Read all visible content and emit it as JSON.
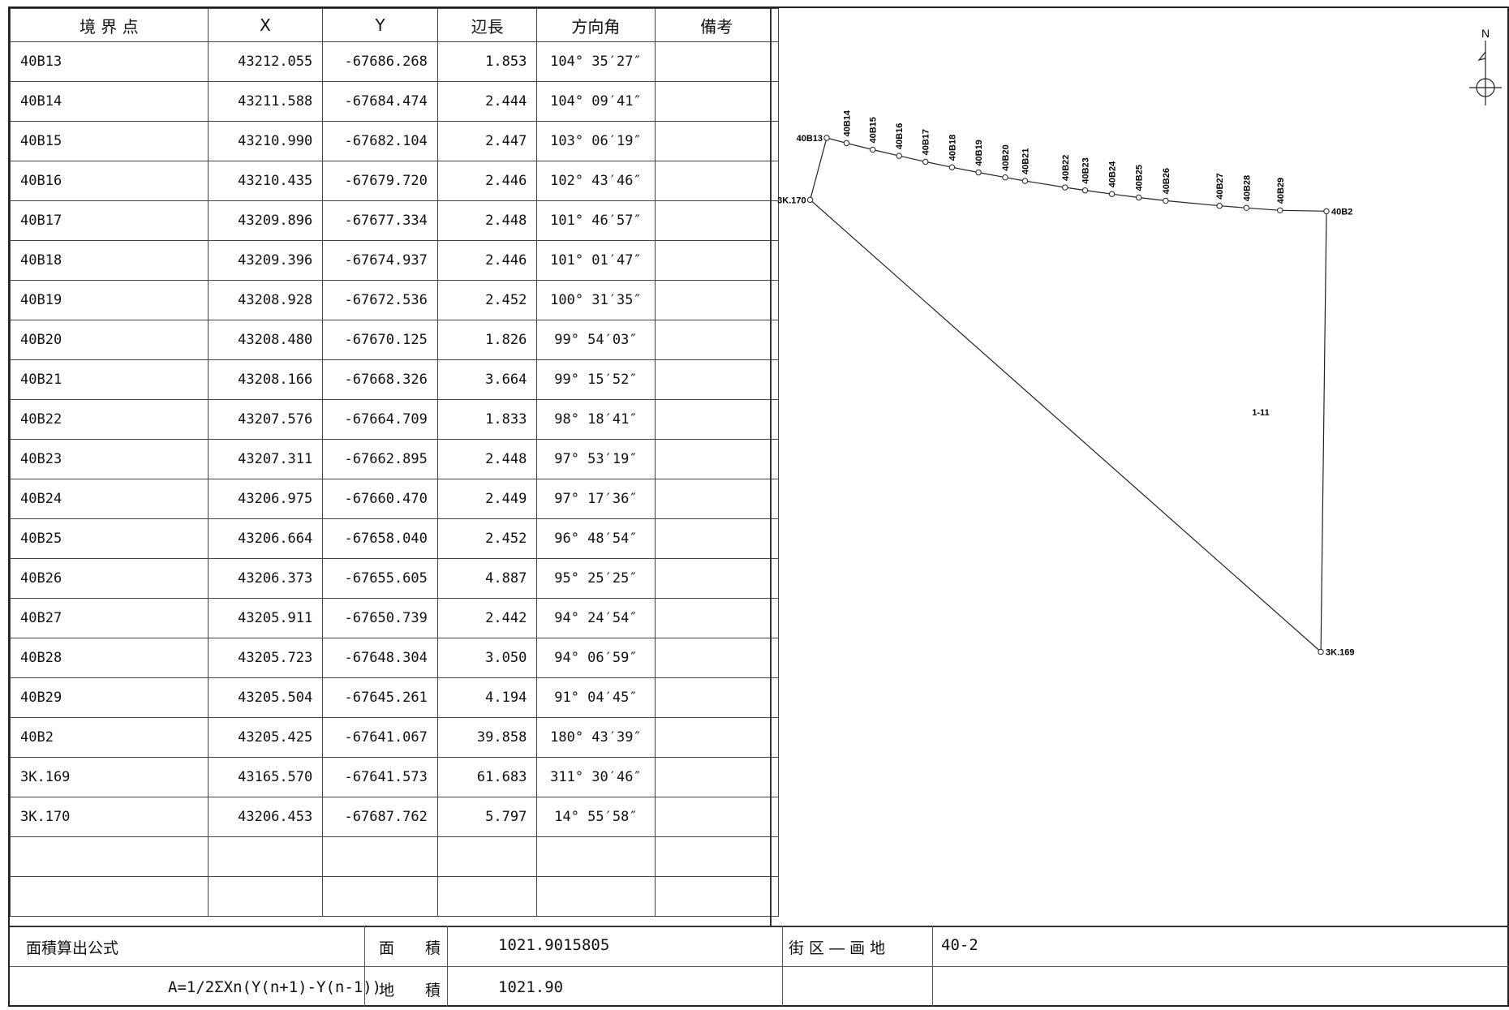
{
  "table": {
    "headers": [
      "境 界 点",
      "X",
      "Y",
      "辺長",
      "方向角",
      "備考"
    ],
    "rows": [
      {
        "point": "40B13",
        "x": "43212.055",
        "y": "-67686.268",
        "length": "1.853",
        "bearing": "104° 35′27″",
        "note": ""
      },
      {
        "point": "40B14",
        "x": "43211.588",
        "y": "-67684.474",
        "length": "2.444",
        "bearing": "104° 09′41″",
        "note": ""
      },
      {
        "point": "40B15",
        "x": "43210.990",
        "y": "-67682.104",
        "length": "2.447",
        "bearing": "103° 06′19″",
        "note": ""
      },
      {
        "point": "40B16",
        "x": "43210.435",
        "y": "-67679.720",
        "length": "2.446",
        "bearing": "102° 43′46″",
        "note": ""
      },
      {
        "point": "40B17",
        "x": "43209.896",
        "y": "-67677.334",
        "length": "2.448",
        "bearing": "101° 46′57″",
        "note": ""
      },
      {
        "point": "40B18",
        "x": "43209.396",
        "y": "-67674.937",
        "length": "2.446",
        "bearing": "101° 01′47″",
        "note": ""
      },
      {
        "point": "40B19",
        "x": "43208.928",
        "y": "-67672.536",
        "length": "2.452",
        "bearing": "100° 31′35″",
        "note": ""
      },
      {
        "point": "40B20",
        "x": "43208.480",
        "y": "-67670.125",
        "length": "1.826",
        "bearing": "99° 54′03″",
        "note": ""
      },
      {
        "point": "40B21",
        "x": "43208.166",
        "y": "-67668.326",
        "length": "3.664",
        "bearing": "99° 15′52″",
        "note": ""
      },
      {
        "point": "40B22",
        "x": "43207.576",
        "y": "-67664.709",
        "length": "1.833",
        "bearing": "98° 18′41″",
        "note": ""
      },
      {
        "point": "40B23",
        "x": "43207.311",
        "y": "-67662.895",
        "length": "2.448",
        "bearing": "97° 53′19″",
        "note": ""
      },
      {
        "point": "40B24",
        "x": "43206.975",
        "y": "-67660.470",
        "length": "2.449",
        "bearing": "97° 17′36″",
        "note": ""
      },
      {
        "point": "40B25",
        "x": "43206.664",
        "y": "-67658.040",
        "length": "2.452",
        "bearing": "96° 48′54″",
        "note": ""
      },
      {
        "point": "40B26",
        "x": "43206.373",
        "y": "-67655.605",
        "length": "4.887",
        "bearing": "95° 25′25″",
        "note": ""
      },
      {
        "point": "40B27",
        "x": "43205.911",
        "y": "-67650.739",
        "length": "2.442",
        "bearing": "94° 24′54″",
        "note": ""
      },
      {
        "point": "40B28",
        "x": "43205.723",
        "y": "-67648.304",
        "length": "3.050",
        "bearing": "94° 06′59″",
        "note": ""
      },
      {
        "point": "40B29",
        "x": "43205.504",
        "y": "-67645.261",
        "length": "4.194",
        "bearing": "91° 04′45″",
        "note": ""
      },
      {
        "point": "40B2",
        "x": "43205.425",
        "y": "-67641.067",
        "length": "39.858",
        "bearing": "180° 43′39″",
        "note": ""
      },
      {
        "point": "3K.169",
        "x": "43165.570",
        "y": "-67641.573",
        "length": "61.683",
        "bearing": "311° 30′46″",
        "note": ""
      },
      {
        "point": "3K.170",
        "x": "43206.453",
        "y": "-67687.762",
        "length": "5.797",
        "bearing": "14° 55′58″",
        "note": ""
      },
      {
        "point": "",
        "x": "",
        "y": "",
        "length": "",
        "bearing": "",
        "note": ""
      },
      {
        "point": "",
        "x": "",
        "y": "",
        "length": "",
        "bearing": "",
        "note": ""
      }
    ]
  },
  "footer": {
    "formula_label": "面積算出公式",
    "formula": "A=1/2ΣXn(Y(n+1)-Y(n-1))",
    "area_label": "面　　積",
    "area_value": "1021.9015805",
    "land_area_label": "地　　積",
    "land_area_value": "1021.90",
    "block_label": "街 区 ― 画 地",
    "block_value": "40-2"
  },
  "plot": {
    "parcel_label": "1-11",
    "north_label": "N"
  }
}
